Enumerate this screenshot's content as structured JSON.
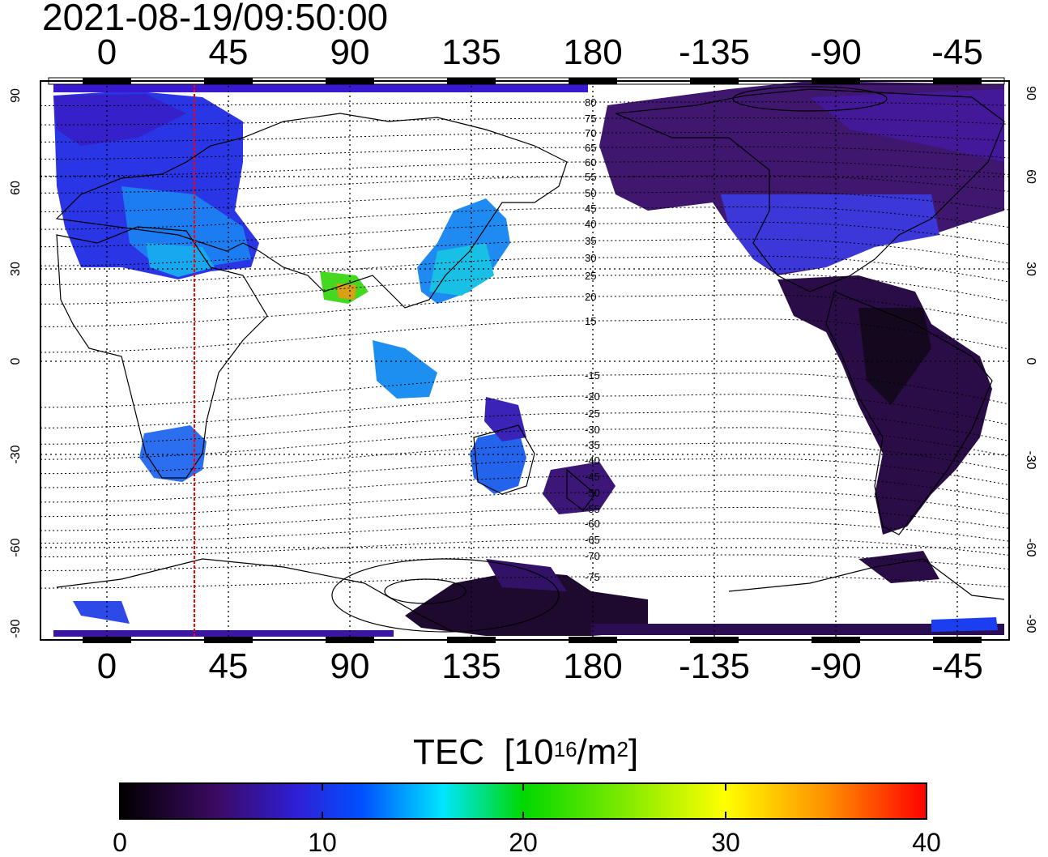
{
  "timestamp": "2021-08-19/09:50:00",
  "map": {
    "type": "TEC global map",
    "x_ticks_top": [
      "0",
      "45",
      "90",
      "135",
      "180",
      "-135",
      "-90",
      "-45"
    ],
    "x_ticks_bottom": [
      "0",
      "45",
      "90",
      "135",
      "180",
      "-135",
      "-90",
      "-45"
    ],
    "y_ticks_left": [
      "90",
      "60",
      "30",
      "0",
      "-30",
      "-60",
      "-90"
    ],
    "y_ticks_right": [
      "90",
      "60",
      "30",
      "0",
      "-30",
      "-60",
      "-90"
    ],
    "magnetic_lat_labels": [
      "80",
      "75",
      "70",
      "65",
      "60",
      "55",
      "50",
      "45",
      "40",
      "35",
      "30",
      "25",
      "20",
      "15",
      "-15",
      "-20",
      "-25",
      "-30",
      "-35",
      "-40",
      "-45",
      "-50",
      "-55",
      "-60",
      "-65",
      "-70",
      "-75"
    ],
    "meridian_marker_lon": 33,
    "grid": "dotted",
    "colors": {
      "marker": "#ff0000",
      "frame": "#000000"
    }
  },
  "colorbar": {
    "title": "TEC",
    "unit_prefix": "[10",
    "unit_exp": "16",
    "unit_mid": "/m",
    "unit_exp2": "2",
    "unit_suffix": "]",
    "ticks": [
      "0",
      "10",
      "20",
      "30",
      "40"
    ],
    "range": [
      0,
      40
    ],
    "colormap": [
      "#000000",
      "#3b0a63",
      "#2f1fd6",
      "#0050ff",
      "#00e6ff",
      "#00d800",
      "#66e600",
      "#ffff00",
      "#ff8c00",
      "#ff0000"
    ]
  }
}
